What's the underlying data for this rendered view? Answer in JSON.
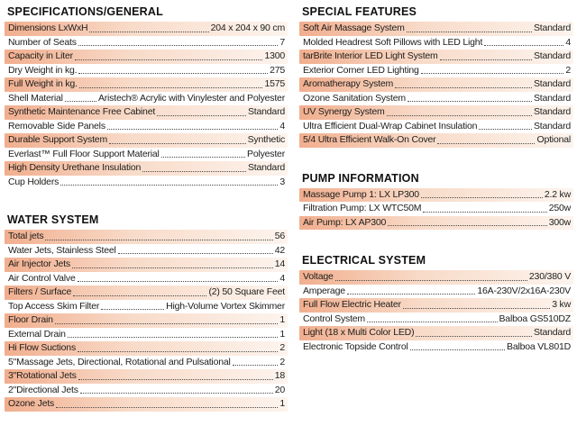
{
  "colors": {
    "background": "#ffffff",
    "highlight_start": "#f1ae8e",
    "highlight_mid": "#f8dbc9",
    "highlight_end": "#fdf4ee",
    "text": "#1d1d1b",
    "leader_dots": "#4a4a4a",
    "heading": "#111111"
  },
  "sections": [
    {
      "title": "SPECIFICATIONS/GENERAL",
      "column": "left",
      "rows": [
        {
          "label": "Dimensions LxWxH",
          "value": "204 x 204 x 90 cm"
        },
        {
          "label": "Number of Seats",
          "value": "7"
        },
        {
          "label": "Capacity in Liter",
          "value": "1300"
        },
        {
          "label": "Dry Weight in kg.",
          "value": "275"
        },
        {
          "label": "Full Weight in kg.",
          "value": "1575"
        },
        {
          "label": "Shell Material",
          "value": "Aristech® Acrylic with Vinylester and Polyester"
        },
        {
          "label": "Synthetic Maintenance Free Cabinet",
          "value": "Standard"
        },
        {
          "label": "Removable Side Panels",
          "value": "4"
        },
        {
          "label": "Durable Support System",
          "value": "Synthetic"
        },
        {
          "label": "Everlast™ Full Floor Support Material",
          "value": "Polyester"
        },
        {
          "label": "High Density Urethane Insulation",
          "value": "Standard"
        },
        {
          "label": "Cup Holders",
          "value": "3"
        }
      ]
    },
    {
      "title": "WATER SYSTEM",
      "column": "left",
      "rows": [
        {
          "label": "Total jets",
          "value": "56"
        },
        {
          "label": "Water Jets, Stainless Steel",
          "value": "42"
        },
        {
          "label": "Air Injector Jets",
          "value": "14"
        },
        {
          "label": "Air Control Valve",
          "value": "4"
        },
        {
          "label": "Filters / Surface",
          "value": "(2) 50 Square Feet"
        },
        {
          "label": "Top Access Skim Filter",
          "value": "High-Volume Vortex Skimmer"
        },
        {
          "label": "Floor Drain",
          "value": "1"
        },
        {
          "label": "External Drain",
          "value": "1"
        },
        {
          "label": "Hi Flow Suctions",
          "value": "2"
        },
        {
          "label": "5\"Massage Jets, Directional, Rotational and Pulsational",
          "value": "2"
        },
        {
          "label": "3\"Rotational Jets",
          "value": "18"
        },
        {
          "label": "2\"Directional Jets",
          "value": "20"
        },
        {
          "label": "Ozone Jets",
          "value": "1"
        }
      ]
    },
    {
      "title": "SPECIAL FEATURES",
      "column": "right",
      "rows": [
        {
          "label": "Soft Air Massage System",
          "value": "Standard"
        },
        {
          "label": "Molded Headrest Soft Pillows with LED Light",
          "value": "4"
        },
        {
          "label": "tarBrite Interior LED Light System",
          "value": "Standard"
        },
        {
          "label": "Exterior Corner LED Lighting",
          "value": "2"
        },
        {
          "label": "Aromatherapy System",
          "value": "Standard"
        },
        {
          "label": "Ozone Sanitation System",
          "value": "Standard"
        },
        {
          "label": "UV Synergy System",
          "value": "Standard"
        },
        {
          "label": "Ultra Efficient Dual-Wrap Cabinet Insulation",
          "value": "Standard"
        },
        {
          "label": "5/4 Ultra Efficient Walk-On Cover",
          "value": "Optional"
        }
      ]
    },
    {
      "title": "PUMP INFORMATION",
      "column": "right",
      "rows": [
        {
          "label": "Massage Pump 1: LX LP300",
          "value": "2.2 kw"
        },
        {
          "label": "Filtration Pump: LX WTC50M",
          "value": "250w"
        },
        {
          "label": "Air Pump: LX AP300",
          "value": "300w"
        }
      ]
    },
    {
      "title": "ELECTRICAL SYSTEM",
      "column": "right",
      "rows": [
        {
          "label": "Voltage",
          "value": "230/380 V"
        },
        {
          "label": "Amperage",
          "value": "16A-230V/2x16A-230V"
        },
        {
          "label": "Full Flow Electric Heater",
          "value": "3 kw"
        },
        {
          "label": "Control System",
          "value": "Balboa GS510DZ"
        },
        {
          "label": "Light (18 x Multi Color LED)",
          "value": "Standard"
        },
        {
          "label": "Electronic Topside Control",
          "value": "Balboa VL801D"
        }
      ]
    }
  ]
}
